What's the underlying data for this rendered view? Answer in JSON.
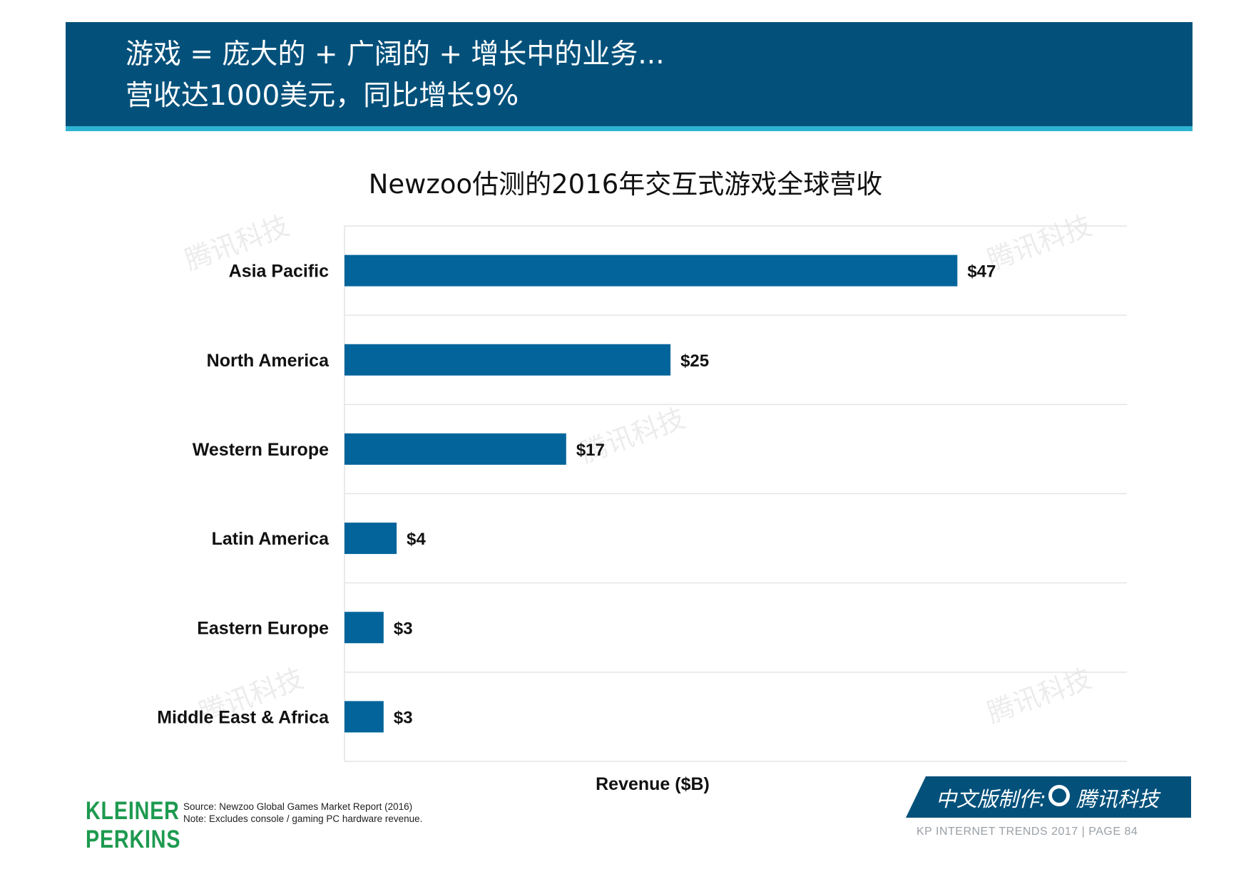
{
  "header": {
    "line1": "游戏 = 庞大的 + 广阔的 + 增长中的业务...",
    "line2": "营收达1000美元，同比增长9%"
  },
  "chart_data": {
    "type": "bar",
    "orientation": "horizontal",
    "title": "Newzoo估测的2016年交互式游戏全球营收",
    "xlabel": "Revenue ($B)",
    "categories": [
      "Asia Pacific",
      "North America",
      "Western Europe",
      "Latin America",
      "Eastern Europe",
      "Middle East & Africa"
    ],
    "values": [
      47,
      25,
      17,
      4,
      3,
      3
    ],
    "labels": [
      "$47",
      "$25",
      "$17",
      "$4",
      "$3",
      "$3"
    ],
    "xlim": [
      0,
      60
    ],
    "grid": true,
    "bar_color": "#03649b"
  },
  "source": {
    "line1": "Source: Newzoo Global Games Market Report (2016)",
    "line2": "Note: Excludes console / gaming PC hardware revenue."
  },
  "logo": {
    "line1": "KLEINER",
    "line2": "PERKINS"
  },
  "badge": {
    "text": "中文版制作:",
    "brand": "腾讯科技"
  },
  "footer": {
    "text": "KP INTERNET TRENDS 2017  |  PAGE 84"
  },
  "watermark": "腾讯科技"
}
